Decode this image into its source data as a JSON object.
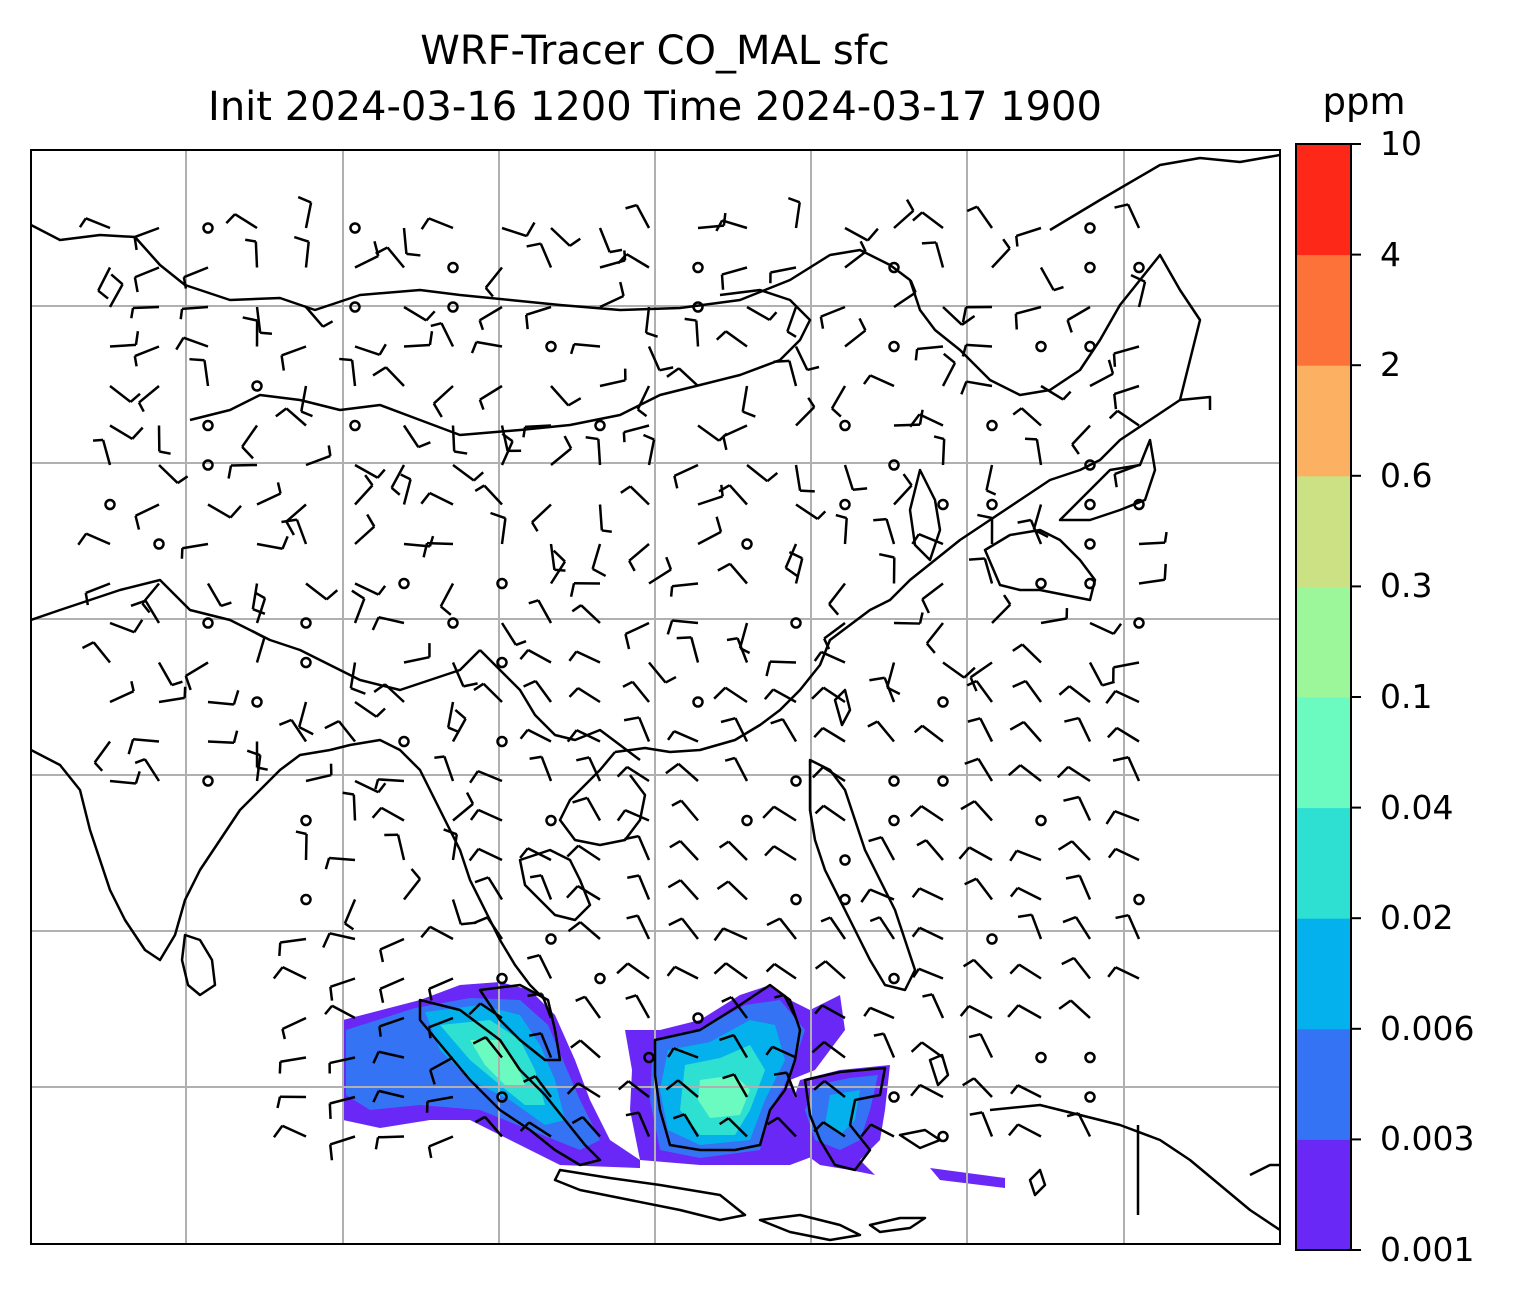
{
  "title": {
    "line1": "WRF-Tracer CO_MAL sfc",
    "line2": "Init 2024-03-16 1200 Time 2024-03-17 1900"
  },
  "colorbar": {
    "unit": "ppm",
    "levels": [
      "0.001",
      "0.003",
      "0.006",
      "0.02",
      "0.04",
      "0.1",
      "0.3",
      "0.6",
      "2",
      "4",
      "10"
    ],
    "colors": [
      "#6a28f7",
      "#3473f4",
      "#04b1ec",
      "#2ee0d2",
      "#6bfac0",
      "#9cf79a",
      "#cce084",
      "#fcb061",
      "#fd7239",
      "#fd2818"
    ]
  },
  "map": {
    "gridlines": true,
    "colors": {
      "coast": "#000000",
      "grid": "#b0b0b0",
      "barb": "#000000"
    }
  }
}
